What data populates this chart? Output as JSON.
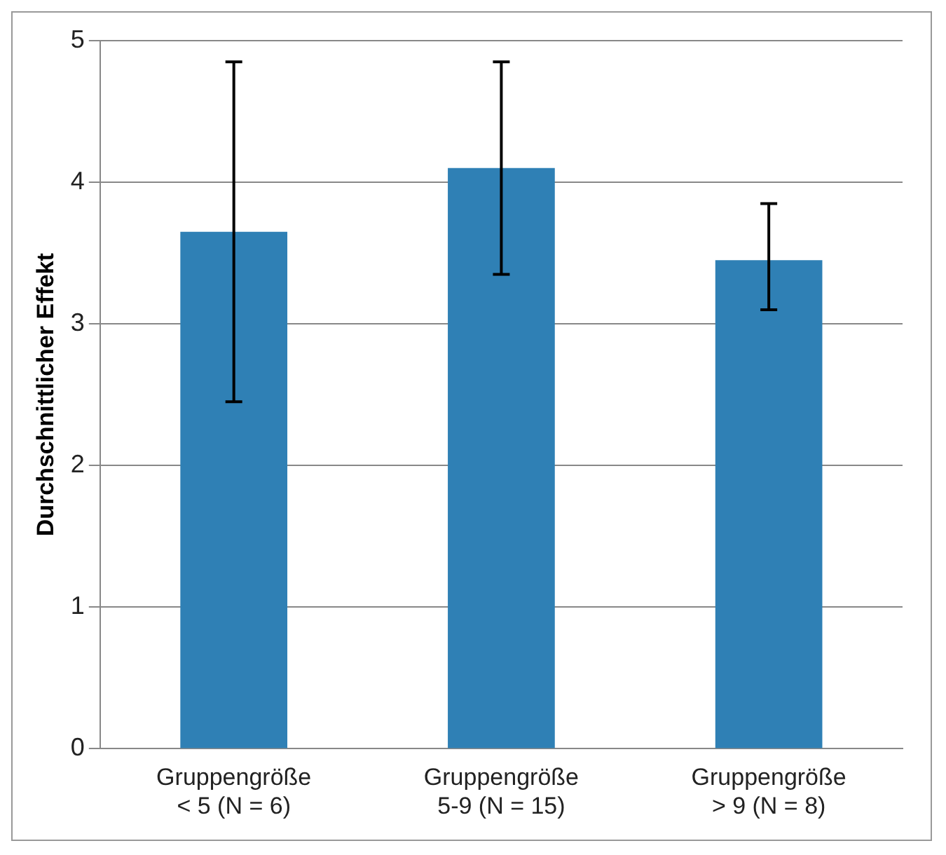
{
  "chart_data": {
    "type": "bar",
    "ylabel": "Durchschnittlicher Effekt",
    "categories": [
      "Gruppengröße\n< 5 (N = 6)",
      "Gruppengröße\n5-9 (N = 15)",
      "Gruppengröße\n> 9 (N = 8)"
    ],
    "values": [
      3.65,
      4.1,
      3.45
    ],
    "errors": [
      [
        2.45,
        4.85
      ],
      [
        3.35,
        4.85
      ],
      [
        3.1,
        3.85
      ]
    ],
    "color": "#2f80b5",
    "ylim": [
      0,
      5
    ],
    "yticks": [
      0,
      1,
      2,
      3,
      4,
      5
    ],
    "grid": "y",
    "legend": false
  }
}
